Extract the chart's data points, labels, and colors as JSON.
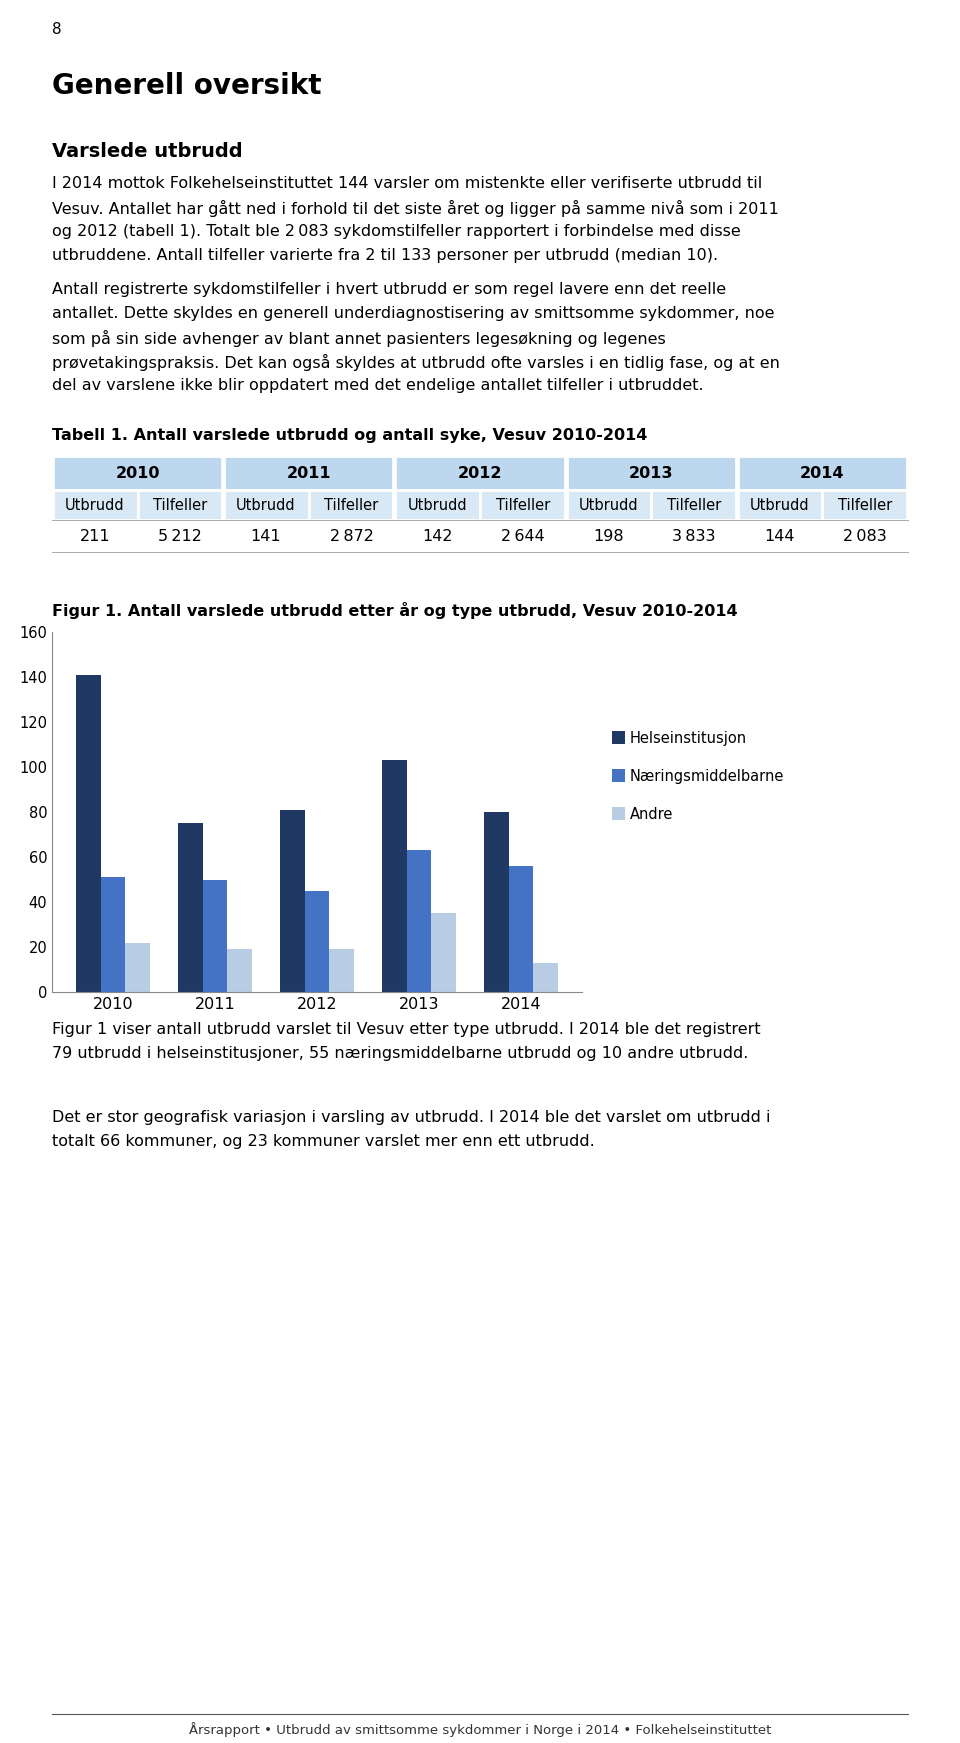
{
  "page_number": "8",
  "heading1": "Generell oversikt",
  "heading2": "Varslede utbrudd",
  "para1_lines": [
    "I 2014 mottok Folkehelseinstituttet 144 varsler om mistenkte eller verifiserte utbrudd til",
    "Vesuv. Antallet har gått ned i forhold til det siste året og ligger på samme nivå som i 2011",
    "og 2012 (tabell 1). Totalt ble 2 083 sykdomstilfeller rapportert i forbindelse med disse",
    "utbruddene. Antall tilfeller varierte fra 2 til 133 personer per utbrudd (median 10)."
  ],
  "para2_lines": [
    "Antall registrerte sykdomstilfeller i hvert utbrudd er som regel lavere enn det reelle",
    "antallet. Dette skyldes en generell underdiagnostisering av smittsomme sykdommer, noe",
    "som på sin side avhenger av blant annet pasienters legesøkning og legenes",
    "prøvetakingspraksis. Det kan også skyldes at utbrudd ofte varsles i en tidlig fase, og at en",
    "del av varslene ikke blir oppdatert med det endelige antallet tilfeller i utbruddet."
  ],
  "table_title": "Tabell 1. Antall varslede utbrudd og antall syke, Vesuv 2010-2014",
  "table_years": [
    "2010",
    "2011",
    "2012",
    "2013",
    "2014"
  ],
  "table_col1": "Utbrudd",
  "table_col2": "Tilfeller",
  "table_values": [
    "211",
    "5 212",
    "141",
    "2 872",
    "142",
    "2 644",
    "198",
    "3 833",
    "144",
    "2 083"
  ],
  "table_header_bg": "#BDD7EE",
  "table_subheader_bg": "#D9E8F5",
  "fig_title": "Figur 1. Antall varslede utbrudd etter år og type utbrudd, Vesuv 2010-2014",
  "bar_categories": [
    "2010",
    "2011",
    "2012",
    "2013",
    "2014"
  ],
  "bar_helseinstitusjon": [
    141,
    75,
    81,
    103,
    80
  ],
  "bar_naeringsmiddel": [
    51,
    50,
    45,
    63,
    56
  ],
  "bar_andre": [
    22,
    19,
    19,
    35,
    13
  ],
  "color_helseinstitusjon": "#1F3864",
  "color_naeringsmiddel": "#4472C4",
  "color_andre": "#B8CCE4",
  "legend_labels": [
    "Helseinstitusjon",
    "Næringsmiddelbarne",
    "Andre"
  ],
  "ylim": [
    0,
    160
  ],
  "yticks": [
    0,
    20,
    40,
    60,
    80,
    100,
    120,
    140,
    160
  ],
  "fig1_caption": "Figur 1 viser antall utbrudd varslet til Vesuv etter type utbrudd. I 2014 ble det registrert\n79 utbrudd i helseinstitusjoner, 55 næringsmiddelbarne utbrudd og 10 andre utbrudd.",
  "para3": "Det er stor geografisk variasjon i varsling av utbrudd. I 2014 ble det varslet om utbrudd i\ntotalt 66 kommuner, og 23 kommuner varslet mer enn ett utbrudd.",
  "footer": "Årsrapport • Utbrudd av smittsomme sykdommer i Norge i 2014 • Folkehelseinstituttet",
  "background_color": "#ffffff"
}
